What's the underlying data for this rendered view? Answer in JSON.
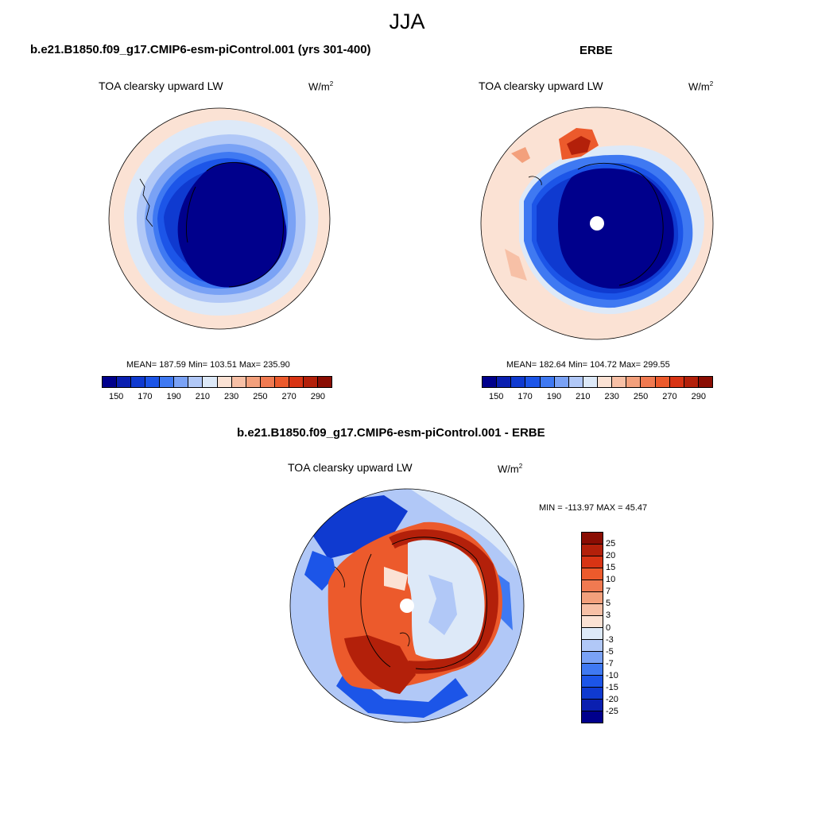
{
  "figure": {
    "title": "JJA"
  },
  "panels": {
    "model": {
      "title": "b.e21.B1850.f09_g17.CMIP6-esm-piControl.001 (yrs 301-400)",
      "variable": "TOA clearsky upward LW",
      "units": "W/m",
      "units_exp": "2",
      "stats": "MEAN= 187.59  Min= 103.51  Max= 235.90"
    },
    "obs": {
      "title": "ERBE",
      "variable": "TOA clearsky upward LW",
      "units": "W/m",
      "units_exp": "2",
      "stats": "MEAN= 182.64  Min= 104.72  Max= 299.55"
    },
    "diff": {
      "title": "b.e21.B1850.f09_g17.CMIP6-esm-piControl.001 - ERBE",
      "variable": "TOA clearsky upward LW",
      "units": "W/m",
      "units_exp": "2",
      "stats": "MIN = -113.97 MAX =  45.47"
    }
  },
  "colorbars": {
    "absolute": {
      "colors": [
        "#00008c",
        "#0a1fb0",
        "#0f3ad0",
        "#1c55e8",
        "#3f79f2",
        "#7aa2f5",
        "#b1c8f7",
        "#dde9f8",
        "#fbe2d4",
        "#f7c0a6",
        "#f3a07c",
        "#f07a51",
        "#ec5a2c",
        "#d83414",
        "#b3200a",
        "#8a0d03"
      ],
      "tick_labels": [
        "150",
        "170",
        "190",
        "210",
        "230",
        "250",
        "270",
        "290"
      ]
    },
    "difference": {
      "colors": [
        "#8a0d03",
        "#b3200a",
        "#d83414",
        "#ec5a2c",
        "#f07a51",
        "#f3a07c",
        "#f7c0a6",
        "#fbe2d4",
        "#dde9f8",
        "#b1c8f7",
        "#7aa2f5",
        "#3f79f2",
        "#1c55e8",
        "#0f3ad0",
        "#0a1fb0",
        "#00008c"
      ],
      "tick_labels": [
        "25",
        "20",
        "15",
        "10",
        "7",
        "5",
        "3",
        "0",
        "-3",
        "-5",
        "-7",
        "-10",
        "-15",
        "-20",
        "-25"
      ]
    }
  }
}
